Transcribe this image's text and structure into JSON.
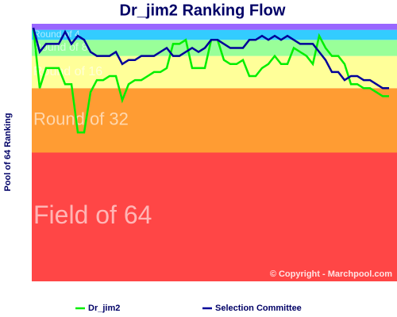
{
  "chart_data": {
    "type": "line",
    "title": "Dr_jim2 Ranking Flow",
    "y_label": "Pool of 64 Ranking",
    "watermark": "© Copyright - Marchpool.com",
    "ylim": [
      64,
      0
    ],
    "bands": [
      {
        "from": 64,
        "to": 32,
        "label": "Field of 64",
        "color": "#ff4646"
      },
      {
        "from": 32,
        "to": 16,
        "label": "Round of 32",
        "color": "#ff9c33"
      },
      {
        "from": 16,
        "to": 8,
        "label": "Round of 16",
        "color": "#ffff99"
      },
      {
        "from": 8,
        "to": 4,
        "label": "Round of 8",
        "color": "#99ff99"
      },
      {
        "from": 4,
        "to": 1.5,
        "label": "Round of 4",
        "color": "#33ccff"
      },
      {
        "from": 1.5,
        "to": 0,
        "color": "#9966ff"
      }
    ],
    "series": [
      {
        "name": "Dr_jim2",
        "color": "#00ee00",
        "values": [
          1,
          16,
          11,
          11,
          11,
          15,
          15,
          27,
          27,
          17,
          14,
          14,
          13,
          13,
          19,
          15,
          14,
          14,
          13,
          12,
          12,
          11,
          5,
          5,
          4,
          11,
          11,
          11,
          4,
          4,
          9,
          10,
          10,
          9,
          13,
          13,
          11,
          10,
          8,
          10,
          10,
          6,
          7,
          8,
          10,
          3,
          6,
          8,
          8,
          10,
          15,
          15,
          16,
          16,
          17,
          18,
          18
        ]
      },
      {
        "name": "Selection Committee",
        "color": "#000099",
        "values": [
          1,
          7,
          5,
          5,
          5,
          2,
          5,
          3,
          4,
          7,
          8,
          8,
          8,
          7,
          10,
          9,
          9,
          8,
          8,
          8,
          7,
          6,
          8,
          8,
          7,
          6,
          7,
          6,
          4,
          4,
          5,
          6,
          6,
          6,
          4,
          4,
          3,
          4,
          3,
          4,
          3,
          4,
          5,
          5,
          5,
          7,
          9,
          12,
          12,
          14,
          13,
          13,
          14,
          14,
          15,
          16,
          16
        ]
      }
    ]
  }
}
